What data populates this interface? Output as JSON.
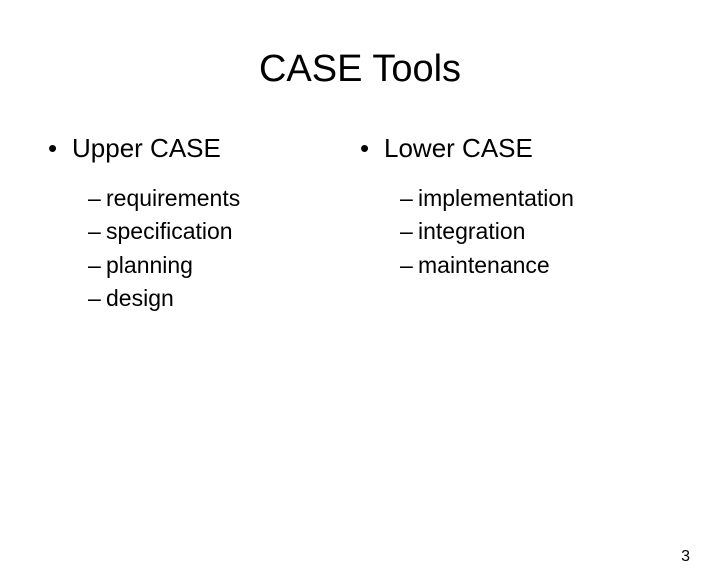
{
  "title": "CASE Tools",
  "left": {
    "heading": "Upper CASE",
    "items": [
      "requirements",
      "specification",
      "planning",
      "design"
    ]
  },
  "right": {
    "heading": "Lower CASE",
    "items": [
      "implementation",
      "integration",
      "maintenance"
    ]
  },
  "page_number": "3",
  "colors": {
    "background": "#ffffff",
    "text": "#000000"
  },
  "fonts": {
    "title_size_pt": 38,
    "heading_size_pt": 26,
    "item_size_pt": 23,
    "page_number_size_pt": 16,
    "family": "Arial"
  },
  "bullet_glyph": "•",
  "dash_glyph": "–"
}
